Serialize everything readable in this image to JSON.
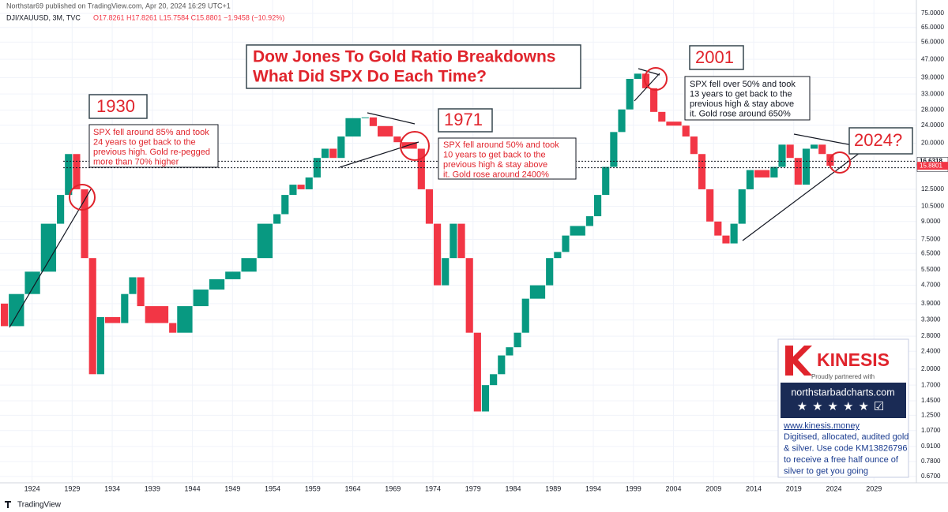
{
  "header": {
    "published": "Northstar69 published on TradingView.com, Apr 20, 2024 16:29 UTC+1",
    "symbol": "DJI/XAUUSD, 3M, TVC",
    "ohlc": "O17.8261 H17.8261 L15.7584 C15.8801 −1.9458 (−10.92%)"
  },
  "chart_data": {
    "type": "candlestick",
    "log_scale": true,
    "x": [
      1920,
      1921,
      1923,
      1925,
      1927,
      1928,
      1929,
      1930,
      1931,
      1932,
      1933,
      1935,
      1936,
      1937,
      1938,
      1941,
      1942,
      1944,
      1946,
      1948,
      1950,
      1952,
      1954,
      1955,
      1956,
      1957,
      1958,
      1959,
      1960,
      1961,
      1962,
      1963,
      1965,
      1966,
      1967,
      1969,
      1970,
      1972,
      1973,
      1974,
      1975,
      1976,
      1977,
      1978,
      1979,
      1980,
      1981,
      1982,
      1983,
      1984,
      1985,
      1986,
      1988,
      1989,
      1990,
      1991,
      1993,
      1994,
      1995,
      1996,
      1997,
      1998,
      1999,
      2000,
      2001,
      2002,
      2003,
      2005,
      2006,
      2007,
      2008,
      2009,
      2010,
      2011,
      2012,
      2013,
      2014,
      2016,
      2017,
      2018,
      2019,
      2020,
      2021,
      2022,
      2023,
      2024
    ],
    "close": [
      3.9,
      3.1,
      4.3,
      5.4,
      8.8,
      11.8,
      17.9,
      12.5,
      6.2,
      1.9,
      3.4,
      3.2,
      4.3,
      5.1,
      3.8,
      3.2,
      2.9,
      3.8,
      4.5,
      5.0,
      5.4,
      6.2,
      8.8,
      9.7,
      11.8,
      13.1,
      12.5,
      14.1,
      17.2,
      18.9,
      17.2,
      21.4,
      25.8,
      26,
      23.8,
      21.4,
      20.2,
      18.9,
      12.5,
      8.8,
      4.7,
      6.2,
      8.8,
      6.2,
      2.9,
      1.3,
      1.7,
      1.9,
      2.3,
      2.5,
      2.9,
      4.1,
      4.7,
      6.2,
      6.6,
      7.8,
      8.6,
      9.5,
      11.8,
      15.7,
      22.4,
      28.2,
      38.5,
      40.6,
      35,
      27.5,
      24.9,
      23.9,
      21.4,
      17.9,
      12.5,
      9.0,
      7.8,
      7.2,
      8.8,
      12.5,
      15.2,
      14.1,
      15.7,
      19.7,
      17.2,
      13.1,
      18.9,
      19.7,
      17.9,
      15.8801
    ],
    "up_color": "#089981",
    "down_color": "#f23645",
    "xlim": [
      1920,
      2034.3
    ],
    "xticks": [
      1924,
      1929,
      1934,
      1939,
      1944,
      1949,
      1954,
      1959,
      1964,
      1969,
      1974,
      1979,
      1984,
      1989,
      1994,
      1999,
      2004,
      2009,
      2014,
      2019,
      2024,
      2029
    ],
    "ylim": [
      0.67,
      75
    ],
    "yticks": [
      {
        "value": 75,
        "label": "75.0000"
      },
      {
        "value": 65,
        "label": "65.0000"
      },
      {
        "value": 56,
        "label": "56.0000"
      },
      {
        "value": 47,
        "label": "47.0000"
      },
      {
        "value": 39,
        "label": "39.0000"
      },
      {
        "value": 33,
        "label": "33.0000"
      },
      {
        "value": 28,
        "label": "28.0000"
      },
      {
        "value": 24,
        "label": "24.0000"
      },
      {
        "value": 20,
        "label": "20.0000"
      },
      {
        "value": 12.5,
        "label": "12.5000"
      },
      {
        "value": 10.5,
        "label": "10.5000"
      },
      {
        "value": 9,
        "label": "9.0000"
      },
      {
        "value": 7.5,
        "label": "7.5000"
      },
      {
        "value": 6.5,
        "label": "6.5000"
      },
      {
        "value": 5.5,
        "label": "5.5000"
      },
      {
        "value": 4.7,
        "label": "4.7000"
      },
      {
        "value": 3.9,
        "label": "3.9000"
      },
      {
        "value": 3.3,
        "label": "3.3000"
      },
      {
        "value": 2.8,
        "label": "2.8000"
      },
      {
        "value": 2.4,
        "label": "2.4000"
      },
      {
        "value": 2,
        "label": "2.0000"
      },
      {
        "value": 1.7,
        "label": "1.7000"
      },
      {
        "value": 1.45,
        "label": "1.4500"
      },
      {
        "value": 1.25,
        "label": "1.2500"
      },
      {
        "value": 1.07,
        "label": "1.0700"
      },
      {
        "value": 0.91,
        "label": "0.9100"
      },
      {
        "value": 0.78,
        "label": "0.7800"
      },
      {
        "value": 0.67,
        "label": "0.6700"
      }
    ],
    "price_lines": [
      {
        "value": 16.6318,
        "label": "16.6318"
      },
      {
        "value": 15.5685,
        "label": "15.5685"
      }
    ],
    "last_price": {
      "value": 15.8801,
      "label": "15.8801"
    },
    "grid": true
  },
  "annotations": {
    "title": [
      "Dow Jones To Gold Ratio Breakdowns",
      "What Did SPX Do Each Time?"
    ],
    "year_1930": "1930",
    "note_1930": [
      "SPX fell around 85% and took",
      "24 years to get back to the",
      "previous high. Gold re-pegged",
      "more than 70% higher"
    ],
    "year_1971": "1971",
    "note_1971": [
      "SPX fell around 50% and took",
      "10 years to get back to the",
      "previous high & stay above",
      "it. Gold rose around 2400%"
    ],
    "year_2001": "2001",
    "note_2001": [
      "SPX fell over 50% and took",
      "13 years to get back to the",
      "previous high & stay above",
      "it. Gold rose around 650%"
    ],
    "year_2024": "2024?"
  },
  "sponsor": {
    "brand": "KINESIS",
    "tagline": "Proudly partnered with",
    "site": "northstarbadcharts.com",
    "url": "www.kinesis.money",
    "text": [
      "Digitised, allocated, audited gold",
      "& silver. Use code KM13826796",
      "to receive a free half ounce of",
      "silver to get you going"
    ]
  },
  "footer": "TradingView"
}
